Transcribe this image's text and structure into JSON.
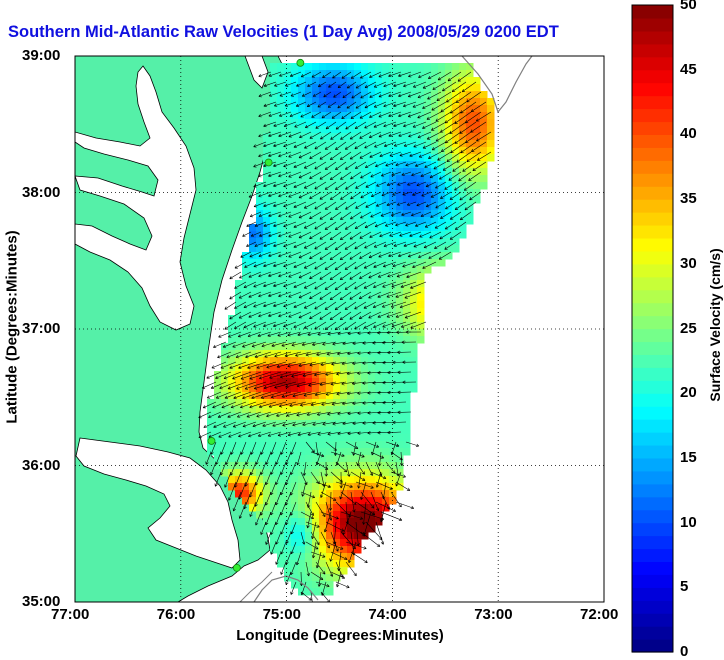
{
  "title": "Southern Mid-Atlantic Raw Velocities (1 Day Avg) 2008/05/29 0200 EDT",
  "axes": {
    "xlabel": "Longitude (Degrees:Minutes)",
    "ylabel": "Latitude (Degrees:Minutes)",
    "xticks": [
      "77:00",
      "76:00",
      "75:00",
      "74:00",
      "73:00",
      "72:00"
    ],
    "yticks": [
      "39:00",
      "38:00",
      "37:00",
      "36:00",
      "35:00"
    ],
    "xlim": [
      -77,
      -72
    ],
    "ylim": [
      35,
      39
    ],
    "grid": "dotted"
  },
  "colorbar": {
    "label": "Surface Velocity (cm/s)",
    "ticks": [
      "50",
      "45",
      "40",
      "35",
      "30",
      "25",
      "20",
      "15",
      "10",
      "5",
      "0"
    ],
    "range": [
      0,
      50
    ],
    "colormap": "jet"
  },
  "colors": {
    "land": "#55f0a8",
    "water": "#ffffff",
    "title": "#1010e0",
    "arrows": "#000000",
    "stations": "#33ee33"
  },
  "stations": [
    {
      "lon": -74.87,
      "lat": 38.95
    },
    {
      "lon": -75.17,
      "lat": 38.22
    },
    {
      "lon": -75.71,
      "lat": 36.18
    },
    {
      "lon": -75.47,
      "lat": 35.25
    }
  ],
  "map_features": [
    "coastline",
    "chesapeake-bay",
    "bathymetry-contours",
    "velocity-field",
    "vector-arrows",
    "radar-stations"
  ]
}
